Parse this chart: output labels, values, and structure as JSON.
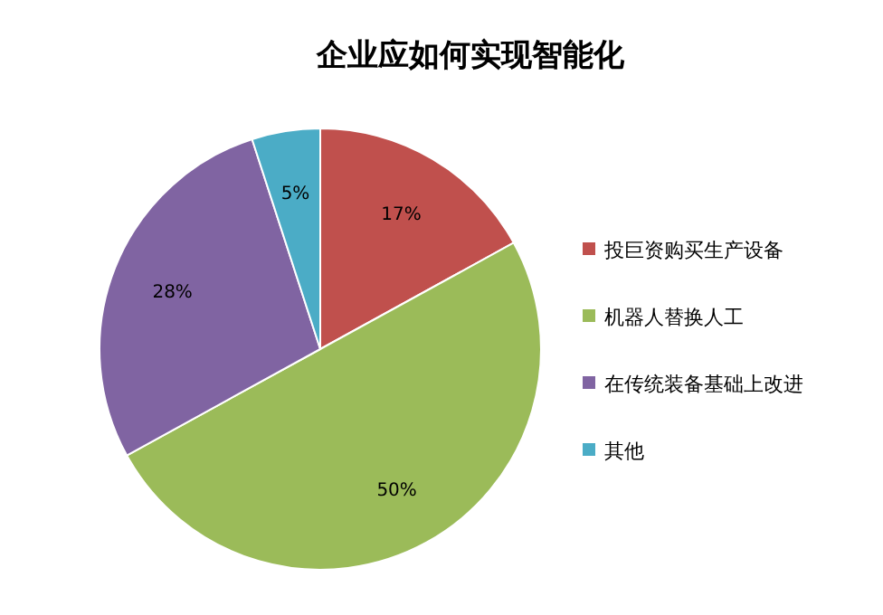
{
  "chart_data": {
    "type": "pie",
    "title": "企业应如何实现智能化",
    "categories": [
      "投巨资购买生产设备",
      "机器人替换人工",
      "在传统装备基础上改进",
      "其他"
    ],
    "values": [
      17,
      50,
      28,
      5
    ],
    "colors": [
      "#c0504d",
      "#9bbb59",
      "#8064a2",
      "#4bacc6"
    ],
    "value_labels": [
      "17%",
      "50%",
      "28%",
      "5%"
    ],
    "legend": "right"
  }
}
